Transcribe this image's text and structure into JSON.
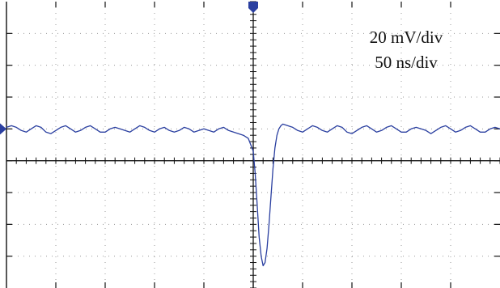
{
  "scale": {
    "vertical": "20 mV/div",
    "horizontal": "50 ns/div"
  },
  "colors": {
    "background": "#ffffff",
    "grid": "#9a9a9a",
    "axis": "#111111",
    "trace": "#2a3fa0",
    "marker": "#2a3fa0"
  },
  "chart_data": {
    "type": "line",
    "title": "",
    "xlabel": "",
    "ylabel": "",
    "x_unit": "ns",
    "y_unit": "mV",
    "x_per_div": 50,
    "y_per_div": 20,
    "xlim": [
      -250,
      250
    ],
    "ylim": [
      -80,
      100
    ],
    "grid": true,
    "trigger_marker_x": 0,
    "level_marker_y": 20,
    "series": [
      {
        "x": [
          -250,
          -245,
          -240,
          -235,
          -230,
          -225,
          -220,
          -215,
          -210,
          -205,
          -200,
          -195,
          -190,
          -185,
          -180,
          -175,
          -170,
          -165,
          -160,
          -155,
          -150,
          -145,
          -140,
          -135,
          -130,
          -125,
          -120,
          -115,
          -110,
          -105,
          -100,
          -95,
          -90,
          -85,
          -80,
          -75,
          -70,
          -65,
          -60,
          -55,
          -50,
          -45,
          -40,
          -35,
          -30,
          -25,
          -20,
          -15,
          -10,
          -5,
          0,
          2,
          4,
          6,
          8,
          10,
          12,
          14,
          16,
          18,
          20,
          22,
          24,
          26,
          28,
          30,
          35,
          40,
          45,
          50,
          55,
          60,
          65,
          70,
          75,
          80,
          85,
          90,
          95,
          100,
          105,
          110,
          115,
          120,
          125,
          130,
          135,
          140,
          145,
          150,
          155,
          160,
          165,
          170,
          175,
          180,
          185,
          190,
          195,
          200,
          205,
          210,
          215,
          220,
          225,
          230,
          235,
          240,
          245,
          250
        ],
        "values": [
          21,
          22,
          21,
          19,
          18,
          20,
          22,
          21,
          18,
          17,
          19,
          21,
          22,
          20,
          18,
          19,
          21,
          22,
          20,
          18,
          18,
          20,
          21,
          20,
          19,
          18,
          20,
          22,
          21,
          19,
          18,
          20,
          21,
          19,
          18,
          19,
          21,
          20,
          18,
          19,
          20,
          19,
          18,
          20,
          21,
          19,
          18,
          17,
          16,
          14,
          6,
          -8,
          -28,
          -48,
          -60,
          -66,
          -64,
          -55,
          -40,
          -22,
          -5,
          8,
          16,
          20,
          22,
          23,
          22,
          21,
          19,
          18,
          20,
          22,
          21,
          19,
          18,
          20,
          22,
          21,
          18,
          17,
          19,
          21,
          22,
          20,
          18,
          19,
          21,
          22,
          20,
          18,
          18,
          20,
          21,
          20,
          19,
          17,
          19,
          21,
          22,
          20,
          18,
          19,
          21,
          22,
          20,
          18,
          18,
          20,
          21,
          20
        ]
      }
    ]
  }
}
